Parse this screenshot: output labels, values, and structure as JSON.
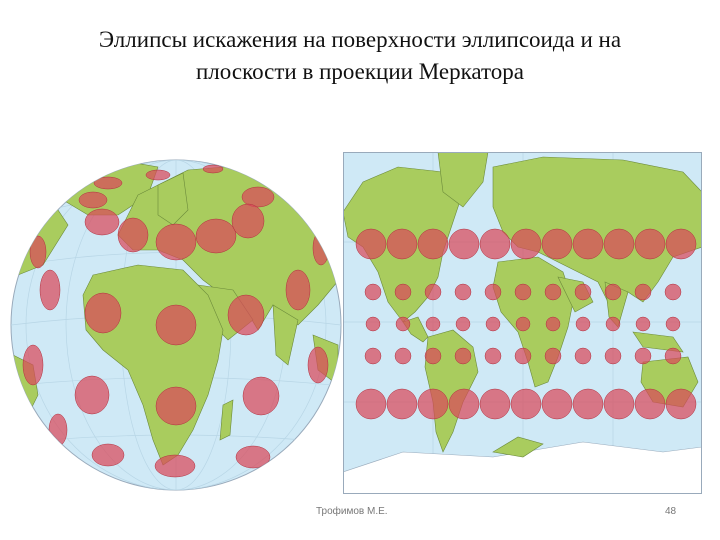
{
  "slide": {
    "title_line1": "Эллипсы искажения на поверхности эллипсоида и на",
    "title_line2": "плоскости в проекции Меркатора",
    "footer_author": "Трофимов М.Е.",
    "page_number": "48"
  },
  "colors": {
    "ocean": "#cfe9f6",
    "land": "#a9cc5e",
    "coast": "#6b8a3a",
    "ellipse": "#d94a5a",
    "ellipse_over_land": "#d2543a",
    "ice": "#ffffff"
  }
}
